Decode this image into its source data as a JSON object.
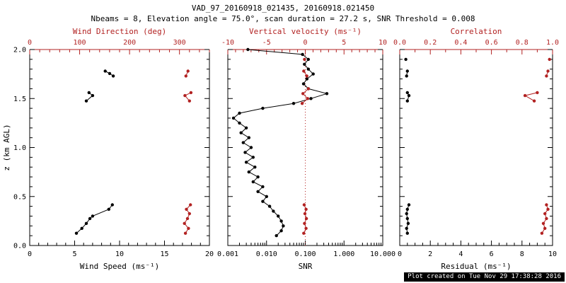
{
  "header": {
    "title": "VAD_97_20160918_021435, 20160918.021450",
    "subtitle": "Nbeams = 8, Elevation angle = 75.0°, scan duration = 27.2 s, SNR Threshold = 0.008"
  },
  "footer": {
    "created": "Plot created on Tue Nov 29 17:38:28 2016"
  },
  "colors": {
    "axis_black": "#000000",
    "axis_red": "#b22222",
    "background": "#ffffff"
  },
  "chart_data": {
    "type": "scatter",
    "title": "VAD_97_20160918_021435, 20160918.021450",
    "y_axis": {
      "label": "z (km AGL)",
      "range": [
        0,
        2
      ],
      "minor": 0.1,
      "ticks": [
        {
          "v": 0,
          "l": "0.0"
        },
        {
          "v": 0.5,
          "l": "0.5"
        },
        {
          "v": 1,
          "l": "1.0"
        },
        {
          "v": 1.5,
          "l": "1.5"
        },
        {
          "v": 2,
          "l": "2.0"
        }
      ]
    },
    "panels": [
      {
        "id": "wind",
        "y_labels": true,
        "bottom_axis": {
          "label": "Wind Speed (ms⁻¹)",
          "range": [
            0,
            20
          ],
          "minor": 1,
          "ticks": [
            {
              "v": 0,
              "l": "0"
            },
            {
              "v": 5,
              "l": "5"
            },
            {
              "v": 10,
              "l": "10"
            },
            {
              "v": 15,
              "l": "15"
            },
            {
              "v": 20,
              "l": "20"
            }
          ]
        },
        "top_axis": {
          "label": "Wind Direction (deg)",
          "range": [
            0,
            360
          ],
          "minor": 20,
          "ticks": [
            {
              "v": 0,
              "l": "0"
            },
            {
              "v": 100,
              "l": "100"
            },
            {
              "v": 200,
              "l": "200"
            },
            {
              "v": 300,
              "l": "300"
            }
          ]
        },
        "series": [
          {
            "name": "wind-speed",
            "axis": "bottom",
            "color": "black",
            "segments": [
              [
                [
                  5.2,
                  0.125
                ],
                [
                  5.8,
                  0.175
                ],
                [
                  6.3,
                  0.225
                ],
                [
                  6.7,
                  0.275
                ],
                [
                  7.0,
                  0.3
                ],
                [
                  8.8,
                  0.37
                ],
                [
                  9.2,
                  0.415
                ]
              ],
              [
                [
                  6.3,
                  1.475
                ],
                [
                  7.0,
                  1.53
                ],
                [
                  6.6,
                  1.56
                ]
              ],
              [
                [
                  8.4,
                  1.78
                ],
                [
                  8.9,
                  1.755
                ],
                [
                  9.3,
                  1.73
                ]
              ]
            ]
          },
          {
            "name": "wind-direction",
            "axis": "top",
            "color": "red",
            "segments": [
              [
                [
                  312,
                  0.125
                ],
                [
                  318,
                  0.175
                ],
                [
                  310,
                  0.225
                ],
                [
                  316,
                  0.275
                ],
                [
                  320,
                  0.325
                ],
                [
                  314,
                  0.37
                ],
                [
                  322,
                  0.415
                ]
              ],
              [
                [
                  320,
                  1.475
                ],
                [
                  311,
                  1.53
                ],
                [
                  323,
                  1.56
                ]
              ],
              [
                [
                  313,
                  1.73
                ],
                [
                  317,
                  1.78
                ]
              ]
            ]
          }
        ]
      },
      {
        "id": "snr",
        "y_labels": false,
        "bottom_axis": {
          "label": "SNR",
          "log": true,
          "range": [
            0.001,
            10
          ],
          "ticks": [
            {
              "v": 0.001,
              "l": "0.001"
            },
            {
              "v": 0.01,
              "l": "0.010"
            },
            {
              "v": 0.1,
              "l": "0.100"
            },
            {
              "v": 1,
              "l": "1.000"
            },
            {
              "v": 10,
              "l": "10.000"
            }
          ]
        },
        "top_axis": {
          "label": "Vertical velocity (ms⁻¹)",
          "range": [
            -10,
            10
          ],
          "minor": 1,
          "zero_line": true,
          "ticks": [
            {
              "v": -10,
              "l": "-10"
            },
            {
              "v": -5,
              "l": "-5"
            },
            {
              "v": 0,
              "l": "0"
            },
            {
              "v": 5,
              "l": "5"
            },
            {
              "v": 10,
              "l": "10"
            }
          ]
        },
        "series": [
          {
            "name": "snr-profile",
            "axis": "bottom",
            "color": "black",
            "segments": [
              [
                [
                  0.018,
                  0.1
                ],
                [
                  0.024,
                  0.15
                ],
                [
                  0.027,
                  0.2
                ],
                [
                  0.024,
                  0.25
                ],
                [
                  0.02,
                  0.3
                ],
                [
                  0.015,
                  0.35
                ],
                [
                  0.012,
                  0.4
                ],
                [
                  0.008,
                  0.45
                ],
                [
                  0.01,
                  0.5
                ],
                [
                  0.006,
                  0.55
                ],
                [
                  0.008,
                  0.6
                ],
                [
                  0.0045,
                  0.65
                ],
                [
                  0.006,
                  0.7
                ],
                [
                  0.0035,
                  0.75
                ],
                [
                  0.005,
                  0.8
                ],
                [
                  0.003,
                  0.85
                ],
                [
                  0.0045,
                  0.9
                ],
                [
                  0.0028,
                  0.95
                ],
                [
                  0.004,
                  1.0
                ],
                [
                  0.0025,
                  1.05
                ],
                [
                  0.0035,
                  1.1
                ],
                [
                  0.0022,
                  1.15
                ],
                [
                  0.003,
                  1.2
                ],
                [
                  0.002,
                  1.25
                ],
                [
                  0.0014,
                  1.3
                ],
                [
                  0.002,
                  1.35
                ],
                [
                  0.008,
                  1.4
                ],
                [
                  0.05,
                  1.45
                ],
                [
                  0.14,
                  1.5
                ],
                [
                  0.36,
                  1.55
                ],
                [
                  0.12,
                  1.6
                ],
                [
                  0.09,
                  1.65
                ],
                [
                  0.11,
                  1.7
                ],
                [
                  0.16,
                  1.75
                ],
                [
                  0.12,
                  1.8
                ],
                [
                  0.095,
                  1.85
                ],
                [
                  0.12,
                  1.9
                ],
                [
                  0.085,
                  1.95
                ],
                [
                  0.0033,
                  2.0
                ]
              ]
            ]
          },
          {
            "name": "vertical-velocity",
            "axis": "top",
            "color": "red",
            "segments": [
              [
                [
                  -0.2,
                  0.125
                ],
                [
                  0.1,
                  0.175
                ],
                [
                  -0.1,
                  0.225
                ],
                [
                  0.15,
                  0.275
                ],
                [
                  -0.05,
                  0.325
                ],
                [
                  0.1,
                  0.37
                ],
                [
                  -0.15,
                  0.415
                ]
              ],
              [
                [
                  -0.4,
                  1.45
                ],
                [
                  0.3,
                  1.5
                ],
                [
                  -0.3,
                  1.55
                ],
                [
                  0.4,
                  1.6
                ]
              ],
              [
                [
                  0.2,
                  1.73
                ],
                [
                  -0.2,
                  1.78
                ]
              ],
              [
                [
                  -0.1,
                  1.9
                ]
              ]
            ]
          }
        ]
      },
      {
        "id": "residual",
        "y_labels": false,
        "bottom_axis": {
          "label": "Residual (ms⁻¹)",
          "range": [
            0,
            10
          ],
          "minor": 0.5,
          "ticks": [
            {
              "v": 0,
              "l": "0"
            },
            {
              "v": 2,
              "l": "2"
            },
            {
              "v": 4,
              "l": "4"
            },
            {
              "v": 6,
              "l": "6"
            },
            {
              "v": 8,
              "l": "8"
            },
            {
              "v": 10,
              "l": "10"
            }
          ]
        },
        "top_axis": {
          "label": "Correlation",
          "range": [
            0,
            1
          ],
          "minor": 0.1,
          "ticks": [
            {
              "v": 0,
              "l": "0.0"
            },
            {
              "v": 0.2,
              "l": "0.2"
            },
            {
              "v": 0.4,
              "l": "0.4"
            },
            {
              "v": 0.6,
              "l": "0.6"
            },
            {
              "v": 0.8,
              "l": "0.8"
            },
            {
              "v": 1,
              "l": "1.0"
            }
          ]
        },
        "series": [
          {
            "name": "residual",
            "axis": "bottom",
            "color": "black",
            "segments": [
              [
                [
                  0.5,
                  0.125
                ],
                [
                  0.45,
                  0.175
                ],
                [
                  0.55,
                  0.225
                ],
                [
                  0.5,
                  0.275
                ],
                [
                  0.45,
                  0.325
                ],
                [
                  0.5,
                  0.37
                ],
                [
                  0.6,
                  0.415
                ]
              ],
              [
                [
                  0.5,
                  1.475
                ],
                [
                  0.6,
                  1.53
                ],
                [
                  0.5,
                  1.56
                ]
              ],
              [
                [
                  0.45,
                  1.73
                ],
                [
                  0.5,
                  1.78
                ]
              ],
              [
                [
                  0.4,
                  1.9
                ]
              ]
            ]
          },
          {
            "name": "correlation",
            "axis": "top",
            "color": "red",
            "segments": [
              [
                [
                  0.93,
                  0.125
                ],
                [
                  0.95,
                  0.175
                ],
                [
                  0.94,
                  0.225
                ],
                [
                  0.96,
                  0.275
                ],
                [
                  0.95,
                  0.325
                ],
                [
                  0.97,
                  0.37
                ],
                [
                  0.96,
                  0.415
                ]
              ],
              [
                [
                  0.88,
                  1.475
                ],
                [
                  0.82,
                  1.53
                ],
                [
                  0.9,
                  1.56
                ]
              ],
              [
                [
                  0.96,
                  1.73
                ],
                [
                  0.97,
                  1.78
                ]
              ],
              [
                [
                  0.98,
                  1.9
                ]
              ]
            ]
          }
        ]
      }
    ]
  }
}
